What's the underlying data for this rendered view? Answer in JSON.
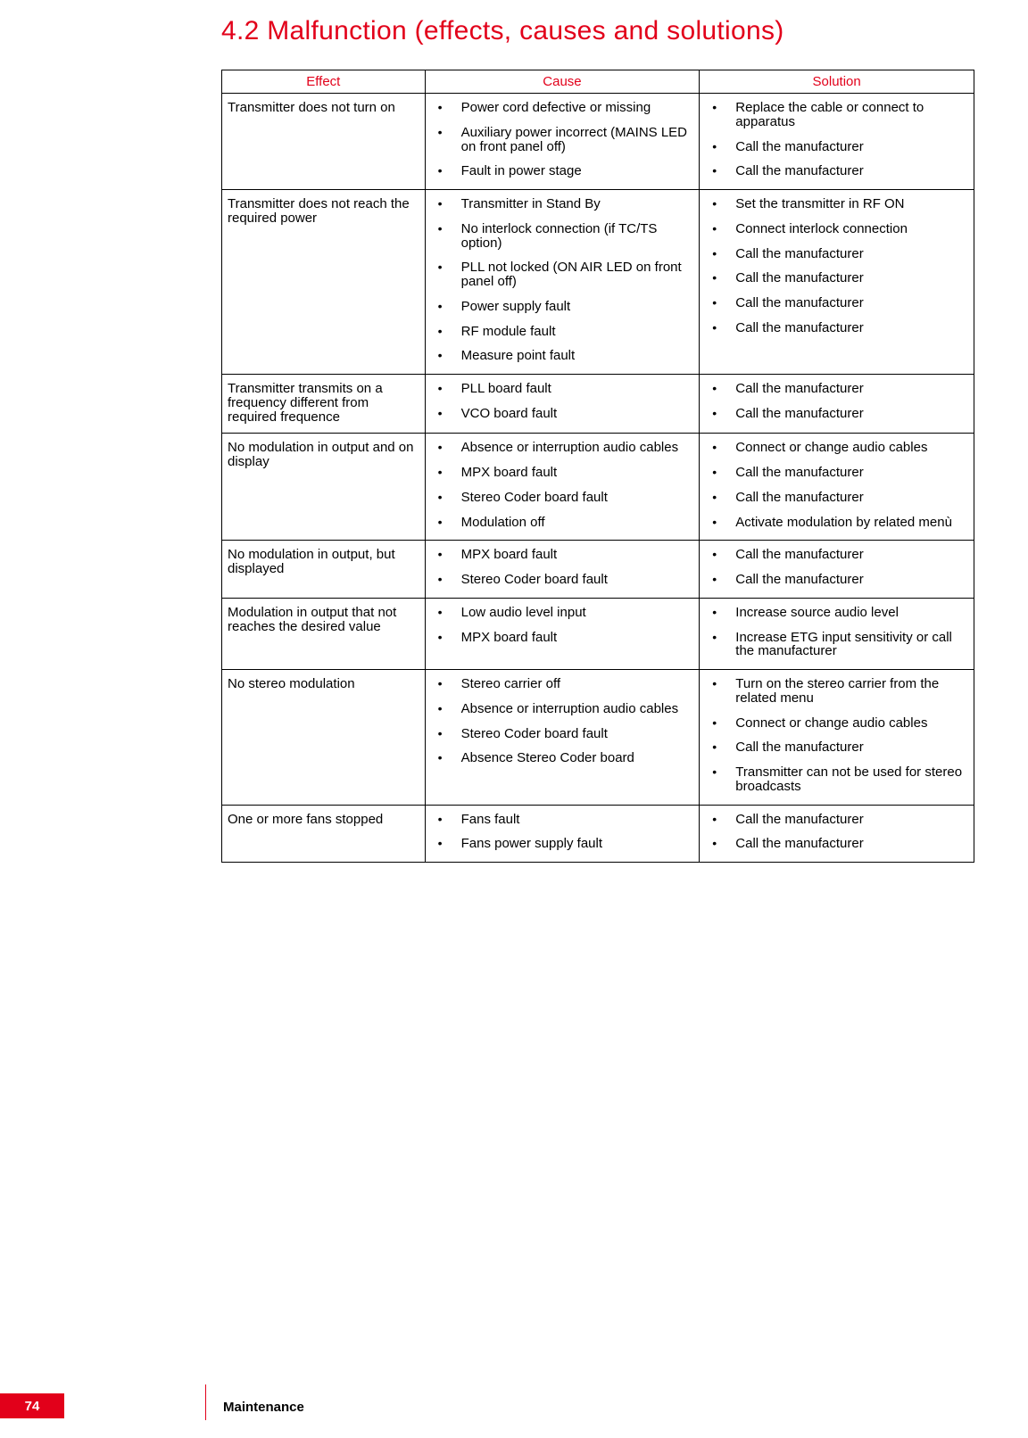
{
  "title": "4.2 Malfunction (effects, causes and solutions)",
  "headers": {
    "effect": "Effect",
    "cause": "Cause",
    "solution": "Solution"
  },
  "rows": [
    {
      "effect": "Transmitter does not turn on",
      "causes": [
        "Power cord defective or missing",
        "Auxiliary power incorrect (MAINS LED on front panel off)",
        "Fault in power stage"
      ],
      "solutions": [
        "Replace the cable or connect to apparatus",
        "Call the manufacturer",
        "Call the manufacturer"
      ]
    },
    {
      "effect": "Transmitter does not reach the required power",
      "causes": [
        "Transmitter in Stand By",
        "No interlock connection (if TC/TS option)",
        "PLL not locked (ON AIR LED on front panel off)",
        "Power supply fault",
        "RF module fault",
        "Measure point fault"
      ],
      "solutions": [
        "Set the transmitter in RF ON",
        "Connect interlock connection",
        "Call the manufacturer",
        "Call the manufacturer",
        "Call the manufacturer",
        "Call the manufacturer"
      ]
    },
    {
      "effect": "Transmitter transmits on a frequency different from required frequence",
      "causes": [
        "PLL board fault",
        "VCO board fault"
      ],
      "solutions": [
        "Call the manufacturer",
        "Call the manufacturer"
      ]
    },
    {
      "effect": "No modulation in output and on display",
      "causes": [
        "Absence or interruption audio cables",
        "MPX board fault",
        "Stereo Coder board fault",
        "Modulation off"
      ],
      "solutions": [
        "Connect or change audio cables",
        "Call the manufacturer",
        "Call the manufacturer",
        "Activate modulation by related menù"
      ]
    },
    {
      "effect": "No modulation in output, but displayed",
      "causes": [
        "MPX board fault",
        "Stereo Coder board fault"
      ],
      "solutions": [
        "Call the manufacturer",
        "Call the manufacturer"
      ]
    },
    {
      "effect": "Modulation in output that not reaches the desired value",
      "causes": [
        "Low audio level input",
        "MPX board fault"
      ],
      "solutions": [
        "Increase source audio level",
        "Increase ETG input sensitivity or call the manufacturer"
      ]
    },
    {
      "effect": "No stereo modulation",
      "causes": [
        "Stereo carrier off",
        "Absence or interruption audio cables",
        "Stereo Coder board fault",
        "Absence Stereo Coder board"
      ],
      "solutions": [
        "Turn on the stereo carrier from the related menu",
        "Connect or change audio cables",
        "Call the manufacturer",
        "Transmitter can not be used for stereo broadcasts"
      ]
    },
    {
      "effect": "One or more fans stopped",
      "causes": [
        "Fans fault",
        "Fans power supply fault"
      ],
      "solutions": [
        "Call the manufacturer",
        "Call the manufacturer"
      ]
    }
  ],
  "footer": {
    "page_number": "74",
    "section": "Maintenance"
  }
}
